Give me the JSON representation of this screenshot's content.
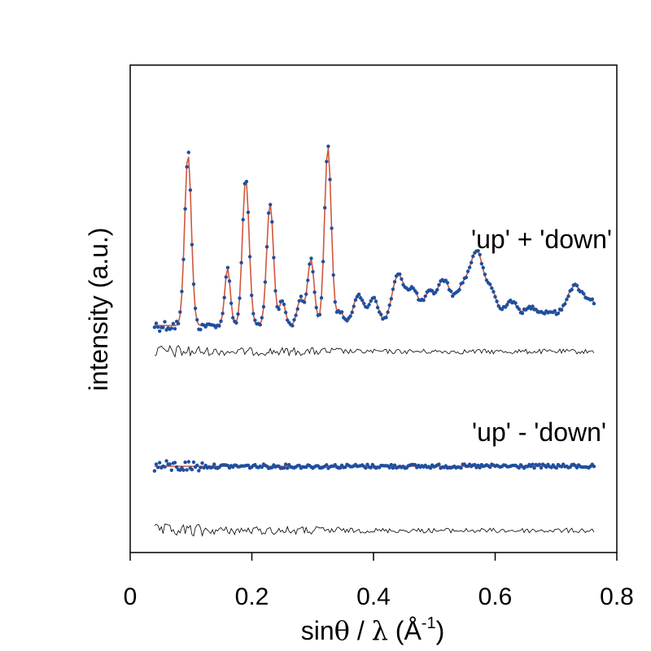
{
  "chart_data": {
    "type": "scatter",
    "xlabel": {
      "prefix": "sin",
      "theta": "θ",
      "slash": " / ",
      "lambda": "λ",
      "unit_open": " (Å",
      "unit_exp": "-1",
      "unit_close": ")"
    },
    "ylabel": "intensity (a.u.)",
    "xlim": [
      0,
      0.8
    ],
    "xticks": [
      "0",
      "0.2",
      "0.4",
      "0.6",
      "0.8"
    ],
    "yticks_labeled": false,
    "grid": false,
    "colors": {
      "observed": "#1f4fa0",
      "calculated": "#d0573c",
      "difference": "#000000"
    },
    "panels": [
      {
        "label": "'up' + 'down'",
        "x_range": [
          0.04,
          0.765
        ],
        "baseline": 100,
        "peaks": [
          {
            "x": 0.095,
            "height": 245,
            "width": 0.0055
          },
          {
            "x": 0.16,
            "height": 82,
            "width": 0.0045
          },
          {
            "x": 0.19,
            "height": 210,
            "width": 0.0055
          },
          {
            "x": 0.23,
            "height": 175,
            "width": 0.0055
          },
          {
            "x": 0.25,
            "height": 35,
            "width": 0.005
          },
          {
            "x": 0.28,
            "height": 38,
            "width": 0.0055
          },
          {
            "x": 0.297,
            "height": 95,
            "width": 0.0055
          },
          {
            "x": 0.325,
            "height": 255,
            "width": 0.0055
          },
          {
            "x": 0.345,
            "height": 20,
            "width": 0.006
          },
          {
            "x": 0.375,
            "height": 45,
            "width": 0.008
          },
          {
            "x": 0.4,
            "height": 40,
            "width": 0.008
          },
          {
            "x": 0.44,
            "height": 70,
            "width": 0.01
          },
          {
            "x": 0.465,
            "height": 50,
            "width": 0.01
          },
          {
            "x": 0.49,
            "height": 38,
            "width": 0.008
          },
          {
            "x": 0.515,
            "height": 65,
            "width": 0.012
          },
          {
            "x": 0.545,
            "height": 45,
            "width": 0.01
          },
          {
            "x": 0.57,
            "height": 105,
            "width": 0.012
          },
          {
            "x": 0.595,
            "height": 40,
            "width": 0.008
          },
          {
            "x": 0.625,
            "height": 35,
            "width": 0.012
          },
          {
            "x": 0.66,
            "height": 25,
            "width": 0.012
          },
          {
            "x": 0.69,
            "height": 18,
            "width": 0.012
          },
          {
            "x": 0.73,
            "height": 55,
            "width": 0.014
          },
          {
            "x": 0.76,
            "height": 30,
            "width": 0.012
          }
        ],
        "difference_offset": 70
      },
      {
        "label": "'up' - 'down'",
        "x_range": [
          0.04,
          0.765
        ],
        "baseline": 0,
        "peaks": [],
        "difference_offset": 80
      }
    ]
  }
}
